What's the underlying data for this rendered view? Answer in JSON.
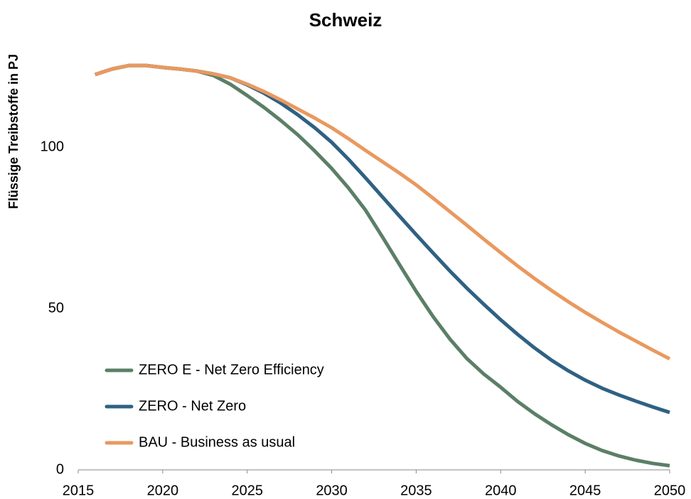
{
  "chart_data": {
    "type": "line",
    "title": "Schweiz",
    "y_label": "Flüssige Treibstoffe in PJ",
    "x": [
      2016,
      2017,
      2018,
      2019,
      2020,
      2021,
      2022,
      2023,
      2024,
      2025,
      2026,
      2027,
      2028,
      2029,
      2030,
      2031,
      2032,
      2033,
      2034,
      2035,
      2036,
      2037,
      2038,
      2039,
      2040,
      2041,
      2042,
      2043,
      2044,
      2045,
      2046,
      2047,
      2048,
      2049,
      2050
    ],
    "series": [
      {
        "name": "ZERO E - Net Zero Efficiency",
        "color": "#5b7f66",
        "values": [
          122.5,
          124.2,
          125.3,
          125.3,
          124.7,
          124.2,
          123.6,
          122.2,
          119.5,
          116,
          112.3,
          108.2,
          103.8,
          98.8,
          93.4,
          87.3,
          80.5,
          72.2,
          63.7,
          55.3,
          47.5,
          40.5,
          34.5,
          29.7,
          25.6,
          21.2,
          17.4,
          14,
          10.9,
          8.2,
          6,
          4.3,
          3,
          2,
          1.3
        ]
      },
      {
        "name": "ZERO - Net Zero",
        "color": "#2f6183",
        "values": [
          122.5,
          124.2,
          125.3,
          125.3,
          124.7,
          124.2,
          123.6,
          122.7,
          121.5,
          119.3,
          116.7,
          113.6,
          110,
          106,
          101.5,
          96.2,
          90.5,
          84.6,
          78.7,
          72.9,
          67.2,
          61.6,
          56.3,
          51.3,
          46.5,
          42,
          37.8,
          34,
          30.7,
          27.8,
          25.3,
          23.2,
          21.3,
          19.5,
          17.8
        ]
      },
      {
        "name": "BAU - Business as usual",
        "color": "#e9995f",
        "values": [
          122.5,
          124.2,
          125.3,
          125.3,
          124.7,
          124.2,
          123.6,
          122.7,
          121.5,
          119.5,
          117.2,
          114.6,
          111.8,
          109,
          106,
          102.6,
          99,
          95.5,
          92,
          88.3,
          84.2,
          80,
          75.8,
          71.5,
          67.3,
          63.2,
          59.3,
          55.6,
          52.1,
          48.8,
          45.7,
          42.7,
          39.9,
          37.1,
          34.4
        ]
      }
    ],
    "xlim": [
      2015,
      2050
    ],
    "xticks": [
      2015,
      2020,
      2025,
      2030,
      2035,
      2040,
      2045,
      2050
    ],
    "ylim": [
      0,
      130
    ],
    "yticks": [
      0,
      50,
      100
    ],
    "grid": false,
    "legend": "lower-left"
  }
}
